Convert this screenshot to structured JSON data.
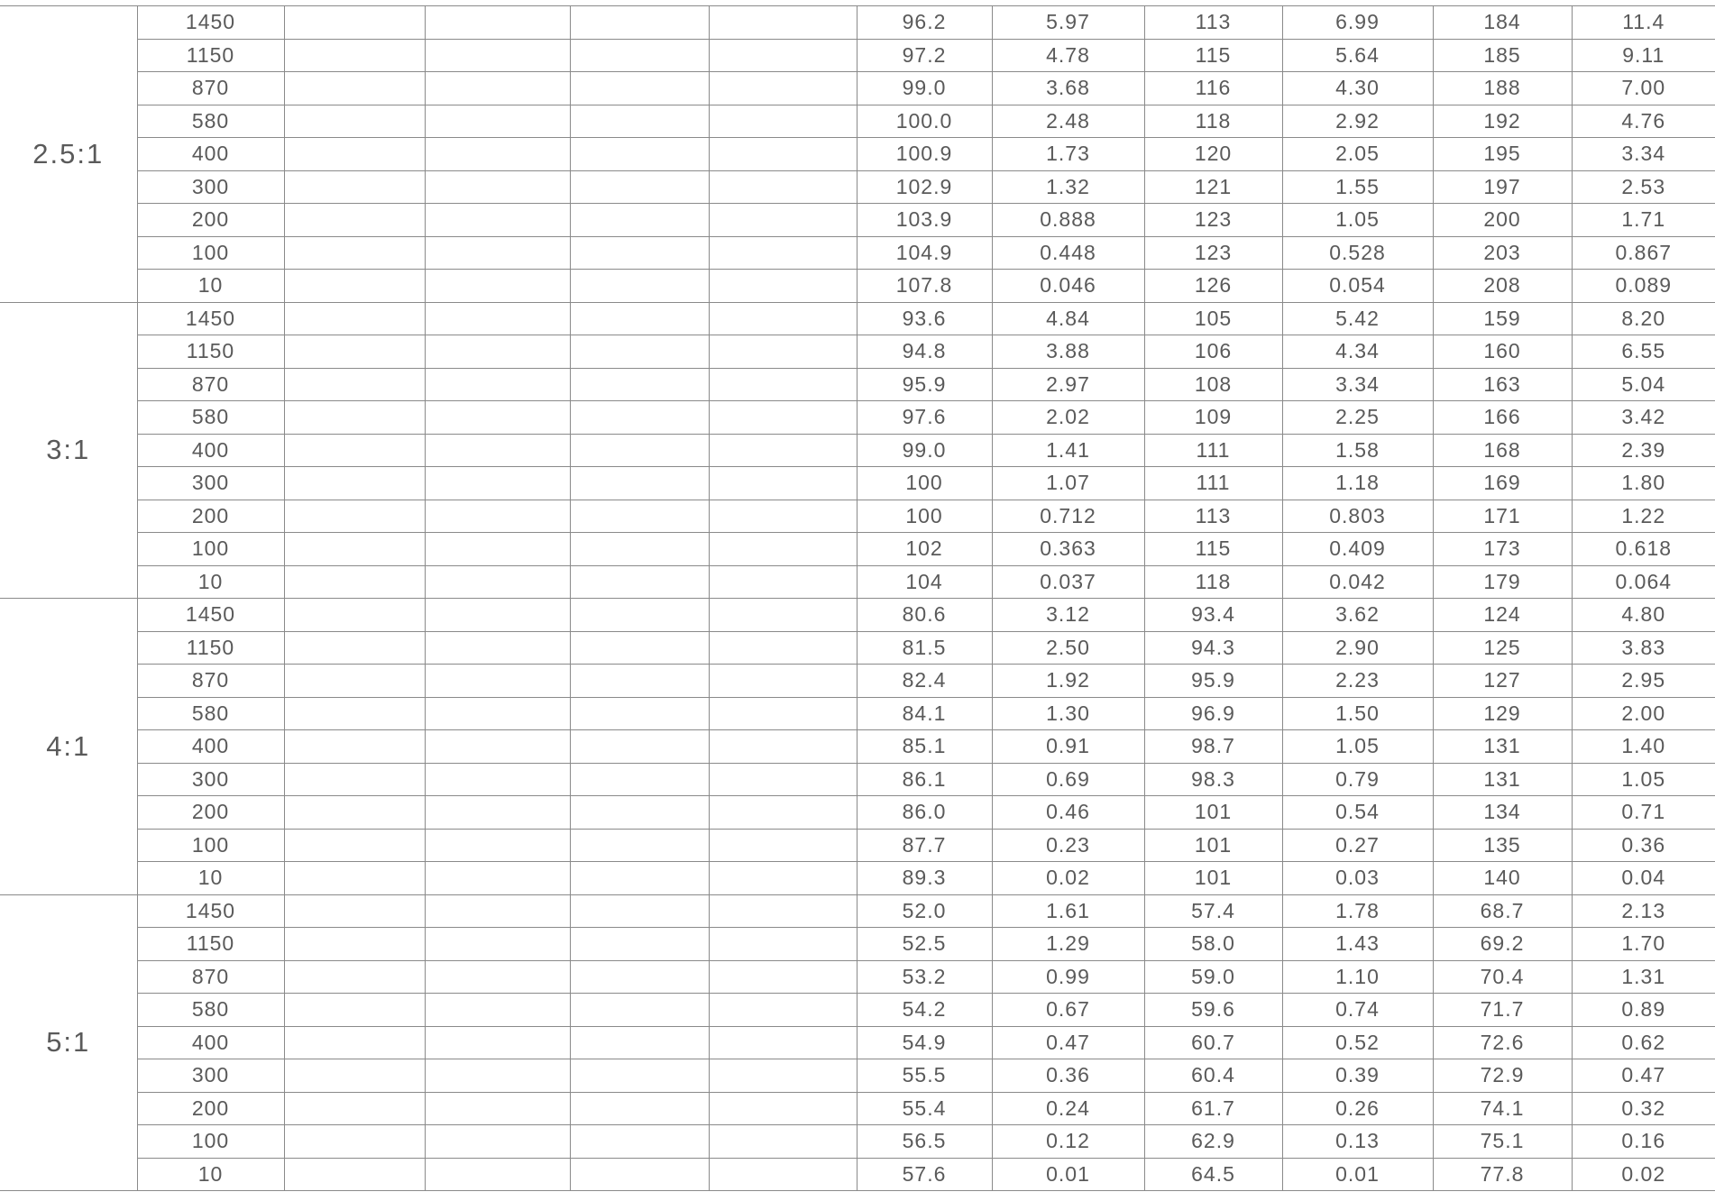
{
  "table": {
    "groups": [
      {
        "ratio": "2.5:1",
        "rows": [
          [
            "1450",
            "96.2",
            "5.97",
            "113",
            "6.99",
            "184",
            "11.4"
          ],
          [
            "1150",
            "97.2",
            "4.78",
            "115",
            "5.64",
            "185",
            "9.11"
          ],
          [
            "870",
            "99.0",
            "3.68",
            "116",
            "4.30",
            "188",
            "7.00"
          ],
          [
            "580",
            "100.0",
            "2.48",
            "118",
            "2.92",
            "192",
            "4.76"
          ],
          [
            "400",
            "100.9",
            "1.73",
            "120",
            "2.05",
            "195",
            "3.34"
          ],
          [
            "300",
            "102.9",
            "1.32",
            "121",
            "1.55",
            "197",
            "2.53"
          ],
          [
            "200",
            "103.9",
            "0.888",
            "123",
            "1.05",
            "200",
            "1.71"
          ],
          [
            "100",
            "104.9",
            "0.448",
            "123",
            "0.528",
            "203",
            "0.867"
          ],
          [
            "10",
            "107.8",
            "0.046",
            "126",
            "0.054",
            "208",
            "0.089"
          ]
        ]
      },
      {
        "ratio": "3:1",
        "rows": [
          [
            "1450",
            "93.6",
            "4.84",
            "105",
            "5.42",
            "159",
            "8.20"
          ],
          [
            "1150",
            "94.8",
            "3.88",
            "106",
            "4.34",
            "160",
            "6.55"
          ],
          [
            "870",
            "95.9",
            "2.97",
            "108",
            "3.34",
            "163",
            "5.04"
          ],
          [
            "580",
            "97.6",
            "2.02",
            "109",
            "2.25",
            "166",
            "3.42"
          ],
          [
            "400",
            "99.0",
            "1.41",
            "111",
            "1.58",
            "168",
            "2.39"
          ],
          [
            "300",
            "100",
            "1.07",
            "111",
            "1.18",
            "169",
            "1.80"
          ],
          [
            "200",
            "100",
            "0.712",
            "113",
            "0.803",
            "171",
            "1.22"
          ],
          [
            "100",
            "102",
            "0.363",
            "115",
            "0.409",
            "173",
            "0.618"
          ],
          [
            "10",
            "104",
            "0.037",
            "118",
            "0.042",
            "179",
            "0.064"
          ]
        ]
      },
      {
        "ratio": "4:1",
        "rows": [
          [
            "1450",
            "80.6",
            "3.12",
            "93.4",
            "3.62",
            "124",
            "4.80"
          ],
          [
            "1150",
            "81.5",
            "2.50",
            "94.3",
            "2.90",
            "125",
            "3.83"
          ],
          [
            "870",
            "82.4",
            "1.92",
            "95.9",
            "2.23",
            "127",
            "2.95"
          ],
          [
            "580",
            "84.1",
            "1.30",
            "96.9",
            "1.50",
            "129",
            "2.00"
          ],
          [
            "400",
            "85.1",
            "0.91",
            "98.7",
            "1.05",
            "131",
            "1.40"
          ],
          [
            "300",
            "86.1",
            "0.69",
            "98.3",
            "0.79",
            "131",
            "1.05"
          ],
          [
            "200",
            "86.0",
            "0.46",
            "101",
            "0.54",
            "134",
            "0.71"
          ],
          [
            "100",
            "87.7",
            "0.23",
            "101",
            "0.27",
            "135",
            "0.36"
          ],
          [
            "10",
            "89.3",
            "0.02",
            "101",
            "0.03",
            "140",
            "0.04"
          ]
        ]
      },
      {
        "ratio": "5:1",
        "rows": [
          [
            "1450",
            "52.0",
            "1.61",
            "57.4",
            "1.78",
            "68.7",
            "2.13"
          ],
          [
            "1150",
            "52.5",
            "1.29",
            "58.0",
            "1.43",
            "69.2",
            "1.70"
          ],
          [
            "870",
            "53.2",
            "0.99",
            "59.0",
            "1.10",
            "70.4",
            "1.31"
          ],
          [
            "580",
            "54.2",
            "0.67",
            "59.6",
            "0.74",
            "71.7",
            "0.89"
          ],
          [
            "400",
            "54.9",
            "0.47",
            "60.7",
            "0.52",
            "72.6",
            "0.62"
          ],
          [
            "300",
            "55.5",
            "0.36",
            "60.4",
            "0.39",
            "72.9",
            "0.47"
          ],
          [
            "200",
            "55.4",
            "0.24",
            "61.7",
            "0.26",
            "74.1",
            "0.32"
          ],
          [
            "100",
            "56.5",
            "0.12",
            "62.9",
            "0.13",
            "75.1",
            "0.16"
          ],
          [
            "10",
            "57.6",
            "0.01",
            "64.5",
            "0.01",
            "77.8",
            "0.02"
          ]
        ]
      }
    ]
  }
}
